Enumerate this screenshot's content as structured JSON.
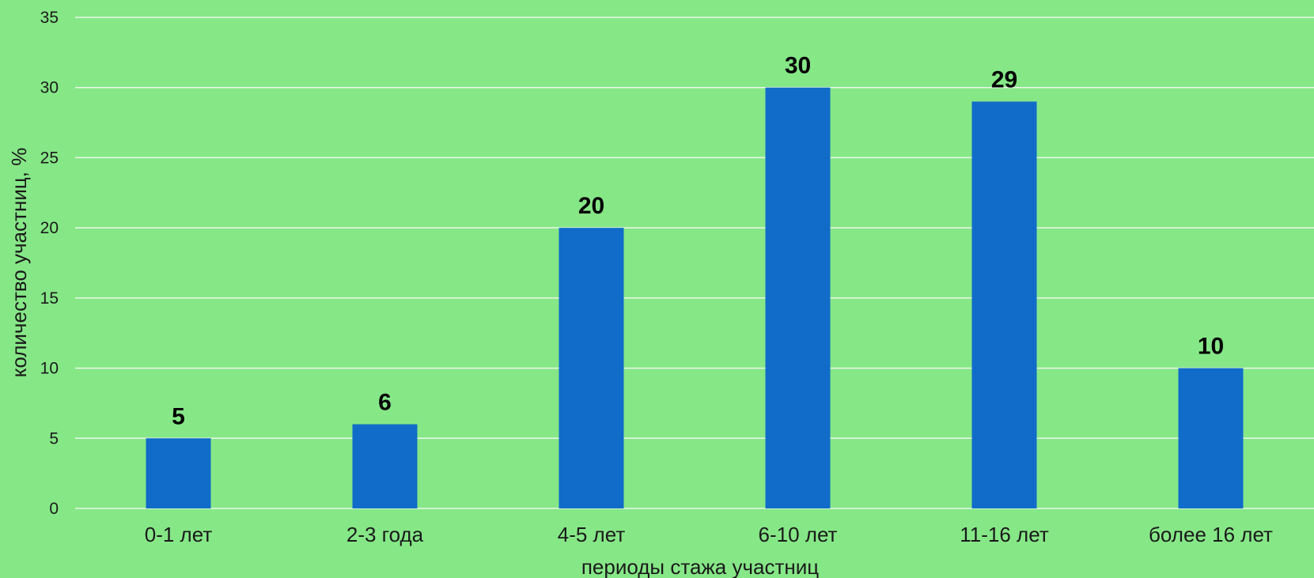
{
  "chart_data": {
    "type": "bar",
    "categories": [
      "0-1 лет",
      "2-3 года",
      "4-5 лет",
      "6-10 лет",
      "11-16 лет",
      "более 16 лет"
    ],
    "values": [
      5,
      6,
      20,
      30,
      29,
      10
    ],
    "data_labels": [
      "5",
      "6",
      "20",
      "30",
      "29",
      "10"
    ],
    "xlabel": "периоды стажа участниц",
    "ylabel": "количество участниц, %",
    "ylim": [
      0,
      35
    ],
    "yticks": [
      0,
      5,
      10,
      15,
      20,
      25,
      30,
      35
    ],
    "ytick_labels": [
      "0",
      "5",
      "10",
      "15",
      "20",
      "25",
      "30",
      "35"
    ],
    "grid": true,
    "legend": "none",
    "colors": {
      "background": "#86e787",
      "bar": "#106cc8",
      "gridline": "#e9f7e9"
    }
  }
}
